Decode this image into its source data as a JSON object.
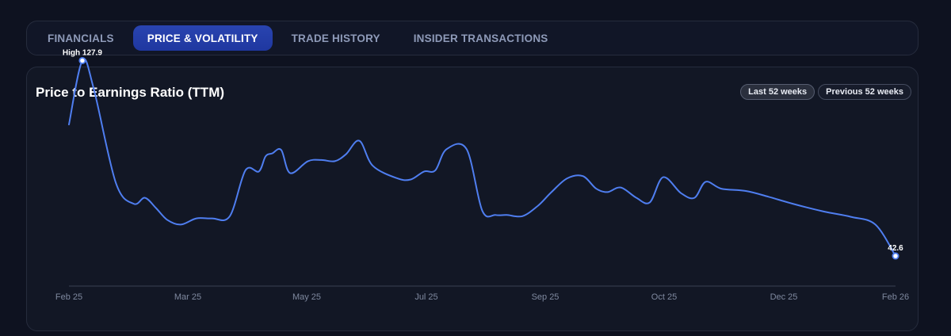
{
  "tabs": [
    {
      "label": "FINANCIALS",
      "active": false
    },
    {
      "label": "PRICE & VOLATILITY",
      "active": true
    },
    {
      "label": "TRADE HISTORY",
      "active": false
    },
    {
      "label": "INSIDER TRANSACTIONS",
      "active": false
    }
  ],
  "card": {
    "title": "Price to Earnings Ratio (TTM)",
    "range_options": [
      "Last 52 weeks",
      "Previous 52 weeks"
    ],
    "selected_range": "Last 52 weeks"
  },
  "colors": {
    "line": "#4f7ef0",
    "accent_tab": "#2944b0",
    "axis": "#3a4054"
  },
  "chart_data": {
    "type": "line",
    "title": "Price to Earnings Ratio (TTM)",
    "xlabel": "",
    "ylabel": "",
    "x_ticks": [
      "Feb 25",
      "Mar 25",
      "May 25",
      "Jul 25",
      "Sep 25",
      "Oct 25",
      "Dec 25",
      "Feb 26"
    ],
    "ylim": [
      20,
      150
    ],
    "grid": false,
    "legend": "none",
    "annotations": [
      {
        "label": "High 127.9",
        "x": "2025-02-11",
        "y": 127.9
      },
      {
        "label": "42.6",
        "x": "2026-02-10",
        "y": 42.6
      }
    ],
    "series": [
      {
        "points": [
          [
            "2025-02-05",
            100.0
          ],
          [
            "2025-02-11",
            127.9
          ],
          [
            "2025-02-16",
            116.0
          ],
          [
            "2025-02-26",
            74.5
          ],
          [
            "2025-03-06",
            65.4
          ],
          [
            "2025-03-11",
            68.0
          ],
          [
            "2025-03-16",
            63.5
          ],
          [
            "2025-03-21",
            58.4
          ],
          [
            "2025-03-27",
            56.3
          ],
          [
            "2025-04-03",
            59.0
          ],
          [
            "2025-04-10",
            59.0
          ],
          [
            "2025-04-18",
            60.0
          ],
          [
            "2025-04-25",
            80.0
          ],
          [
            "2025-05-01",
            79.5
          ],
          [
            "2025-05-04",
            86.1
          ],
          [
            "2025-05-07",
            87.4
          ],
          [
            "2025-05-11",
            88.9
          ],
          [
            "2025-05-15",
            78.8
          ],
          [
            "2025-05-23",
            84.0
          ],
          [
            "2025-05-29",
            84.5
          ],
          [
            "2025-06-04",
            84.0
          ],
          [
            "2025-06-09",
            87.0
          ],
          [
            "2025-06-15",
            92.9
          ],
          [
            "2025-06-21",
            82.0
          ],
          [
            "2025-07-02",
            76.5
          ],
          [
            "2025-07-08",
            76.0
          ],
          [
            "2025-07-14",
            79.5
          ],
          [
            "2025-07-19",
            80.0
          ],
          [
            "2025-07-24",
            89.2
          ],
          [
            "2025-08-02",
            89.2
          ],
          [
            "2025-08-09",
            62.4
          ],
          [
            "2025-08-15",
            60.5
          ],
          [
            "2025-08-20",
            60.5
          ],
          [
            "2025-08-27",
            60.0
          ],
          [
            "2025-09-03",
            64.6
          ],
          [
            "2025-09-09",
            70.5
          ],
          [
            "2025-09-16",
            76.5
          ],
          [
            "2025-09-23",
            77.5
          ],
          [
            "2025-09-29",
            72.0
          ],
          [
            "2025-10-04",
            70.5
          ],
          [
            "2025-10-10",
            72.5
          ],
          [
            "2025-10-17",
            68.0
          ],
          [
            "2025-10-23",
            66.0
          ],
          [
            "2025-10-29",
            77.0
          ],
          [
            "2025-11-06",
            70.0
          ],
          [
            "2025-11-12",
            68.0
          ],
          [
            "2025-11-17",
            75.0
          ],
          [
            "2025-11-24",
            72.0
          ],
          [
            "2025-12-05",
            71.0
          ],
          [
            "2025-12-15",
            68.5
          ],
          [
            "2025-12-26",
            65.4
          ],
          [
            "2026-01-09",
            62.0
          ],
          [
            "2026-01-21",
            59.7
          ],
          [
            "2026-02-01",
            56.3
          ],
          [
            "2026-02-10",
            42.6
          ]
        ]
      }
    ]
  }
}
